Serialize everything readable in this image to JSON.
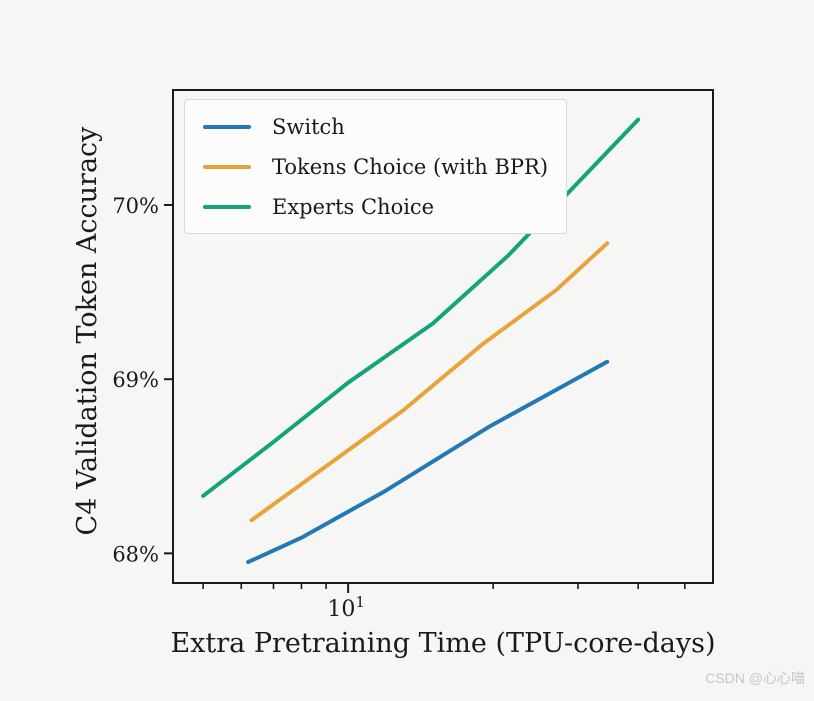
{
  "page": {
    "background": "#f6f6f4",
    "watermark": "CSDN @心心喵"
  },
  "chart_data": {
    "type": "line",
    "title": "",
    "xlabel": "Extra Pretraining Time (TPU-core-days)",
    "ylabel": "C4 Validation Token Accuracy",
    "x_scale": "log",
    "xlim": [
      4.33,
      57.2
    ],
    "ylim": [
      67.83,
      70.66
    ],
    "grid": false,
    "legend_position": "upper-left",
    "x_major_ticks": [
      {
        "value": 10,
        "base": "10",
        "exponent": "1"
      }
    ],
    "x_minor_ticks": [
      5,
      6,
      7,
      8,
      9,
      20,
      30,
      40,
      50
    ],
    "y_ticks": [
      {
        "value": 68,
        "label": "68%"
      },
      {
        "value": 69,
        "label": "69%"
      },
      {
        "value": 70,
        "label": "70%"
      }
    ],
    "series": [
      {
        "name": "Switch",
        "color": "#2279b5",
        "x": [
          6.2,
          8,
          11.8,
          19.7,
          34.5
        ],
        "y": [
          67.95,
          68.09,
          68.35,
          68.73,
          69.1
        ]
      },
      {
        "name": "Tokens Choice (with BPR)",
        "color": "#e8a33d",
        "x": [
          6.3,
          9,
          13,
          19,
          27,
          34.5
        ],
        "y": [
          68.19,
          68.5,
          68.82,
          69.2,
          69.51,
          69.78
        ]
      },
      {
        "name": "Experts Choice",
        "color": "#15a37b",
        "x": [
          5,
          7,
          10,
          15,
          21.5,
          40
        ],
        "y": [
          68.33,
          68.64,
          68.98,
          69.32,
          69.71,
          70.49
        ]
      }
    ]
  }
}
